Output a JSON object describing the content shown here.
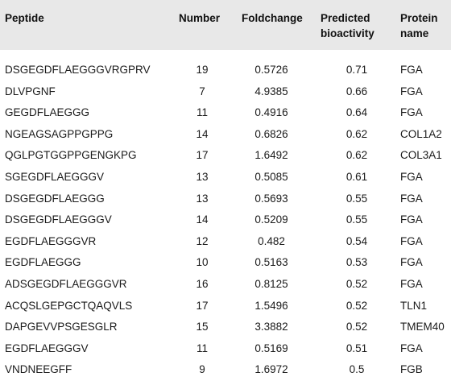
{
  "table": {
    "headers": {
      "peptide": "Peptide",
      "number": "Number",
      "foldchange": "Foldchange",
      "bioactivity_line1": "Predicted",
      "bioactivity_line2": "bioactivity",
      "protein_line1": "Protein",
      "protein_line2": "name"
    },
    "rows": [
      {
        "peptide": "DSGEGDFLAEGGGVRGPRV",
        "number": "19",
        "foldchange": "0.5726",
        "bioactivity": "0.71",
        "protein": "FGA"
      },
      {
        "peptide": "DLVPGNF",
        "number": "7",
        "foldchange": "4.9385",
        "bioactivity": "0.66",
        "protein": "FGA"
      },
      {
        "peptide": "GEGDFLAEGGG",
        "number": "11",
        "foldchange": "0.4916",
        "bioactivity": "0.64",
        "protein": "FGA"
      },
      {
        "peptide": "NGEAGSAGPPGPPG",
        "number": "14",
        "foldchange": "0.6826",
        "bioactivity": "0.62",
        "protein": "COL1A2"
      },
      {
        "peptide": "QGLPGTGGPPGENGKPG",
        "number": "17",
        "foldchange": "1.6492",
        "bioactivity": "0.62",
        "protein": "COL3A1"
      },
      {
        "peptide": "SGEGDFLAEGGGV",
        "number": "13",
        "foldchange": "0.5085",
        "bioactivity": "0.61",
        "protein": "FGA"
      },
      {
        "peptide": "DSGEGDFLAEGGG",
        "number": "13",
        "foldchange": "0.5693",
        "bioactivity": "0.55",
        "protein": "FGA"
      },
      {
        "peptide": "DSGEGDFLAEGGGV",
        "number": "14",
        "foldchange": "0.5209",
        "bioactivity": "0.55",
        "protein": "FGA"
      },
      {
        "peptide": "EGDFLAEGGGVR",
        "number": "12",
        "foldchange": "0.482",
        "bioactivity": "0.54",
        "protein": "FGA"
      },
      {
        "peptide": "EGDFLAEGGG",
        "number": "10",
        "foldchange": "0.5163",
        "bioactivity": "0.53",
        "protein": "FGA"
      },
      {
        "peptide": "ADSGEGDFLAEGGGVR",
        "number": "16",
        "foldchange": "0.8125",
        "bioactivity": "0.52",
        "protein": "FGA"
      },
      {
        "peptide": "ACQSLGEPGCTQAQVLS",
        "number": "17",
        "foldchange": "1.5496",
        "bioactivity": "0.52",
        "protein": "TLN1"
      },
      {
        "peptide": "DAPGEVVPSGESGLR",
        "number": "15",
        "foldchange": "3.3882",
        "bioactivity": "0.52",
        "protein": "TMEM40"
      },
      {
        "peptide": "EGDFLAEGGGV",
        "number": "11",
        "foldchange": "0.5169",
        "bioactivity": "0.51",
        "protein": "FGA"
      },
      {
        "peptide": "VNDNEEGFF",
        "number": "9",
        "foldchange": "1.6972",
        "bioactivity": "0.5",
        "protein": "FGB"
      }
    ]
  }
}
